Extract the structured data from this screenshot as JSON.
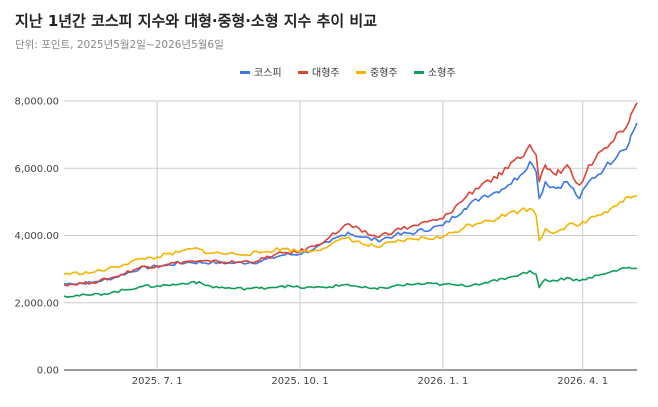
{
  "chart_data": {
    "type": "line",
    "title": "지난 1년간 코스피 지수와 대형·중형·소형 지수 추이 비교",
    "subtitle": "단위: 포인트, 2025년5월2일~2026년5월6일",
    "x_start": "2025-05-02",
    "x_end": "2026-05-06",
    "x_ticks": [
      {
        "date": "2025-07-01",
        "label": "2025. 7. 1"
      },
      {
        "date": "2025-10-01",
        "label": "2025. 10. 1"
      },
      {
        "date": "2026-01-01",
        "label": "2026. 1. 1"
      },
      {
        "date": "2026-04-01",
        "label": "2026. 4. 1"
      }
    ],
    "ylim": [
      0,
      8000
    ],
    "y_ticks": [
      {
        "value": 0,
        "label": "0.00"
      },
      {
        "value": 2000,
        "label": "2,000.00"
      },
      {
        "value": 4000,
        "label": "4,000.00"
      },
      {
        "value": 6000,
        "label": "6,000.00"
      },
      {
        "value": 8000,
        "label": "8,000.00"
      }
    ],
    "grid": true,
    "legend_position": "top",
    "series": [
      {
        "name": "코스피",
        "color": "#3b78e7",
        "points": [
          [
            "2025-05-02",
            2560
          ],
          [
            "2025-05-20",
            2600
          ],
          [
            "2025-06-05",
            2760
          ],
          [
            "2025-06-20",
            3020
          ],
          [
            "2025-07-01",
            3080
          ],
          [
            "2025-07-20",
            3200
          ],
          [
            "2025-08-05",
            3200
          ],
          [
            "2025-08-20",
            3180
          ],
          [
            "2025-09-05",
            3220
          ],
          [
            "2025-09-20",
            3420
          ],
          [
            "2025-10-01",
            3450
          ],
          [
            "2025-10-10",
            3600
          ],
          [
            "2025-10-20",
            3800
          ],
          [
            "2025-11-01",
            4100
          ],
          [
            "2025-11-10",
            3950
          ],
          [
            "2025-11-20",
            3850
          ],
          [
            "2025-12-01",
            4000
          ],
          [
            "2025-12-15",
            4100
          ],
          [
            "2026-01-01",
            4300
          ],
          [
            "2026-01-15",
            4800
          ],
          [
            "2026-01-28",
            5200
          ],
          [
            "2026-02-05",
            5300
          ],
          [
            "2026-02-12",
            5500
          ],
          [
            "2026-02-20",
            5800
          ],
          [
            "2026-02-26",
            6200
          ],
          [
            "2026-03-02",
            5900
          ],
          [
            "2026-03-04",
            5100
          ],
          [
            "2026-03-08",
            5600
          ],
          [
            "2026-03-15",
            5400
          ],
          [
            "2026-03-22",
            5600
          ],
          [
            "2026-03-30",
            5100
          ],
          [
            "2026-04-05",
            5600
          ],
          [
            "2026-04-15",
            6000
          ],
          [
            "2026-04-25",
            6500
          ],
          [
            "2026-05-01",
            6750
          ],
          [
            "2026-05-06",
            7350
          ]
        ]
      },
      {
        "name": "대형주",
        "color": "#db4437",
        "points": [
          [
            "2025-05-02",
            2540
          ],
          [
            "2025-05-20",
            2600
          ],
          [
            "2025-06-05",
            2780
          ],
          [
            "2025-06-20",
            3050
          ],
          [
            "2025-07-01",
            3100
          ],
          [
            "2025-07-20",
            3230
          ],
          [
            "2025-08-05",
            3220
          ],
          [
            "2025-08-20",
            3200
          ],
          [
            "2025-09-05",
            3260
          ],
          [
            "2025-09-20",
            3480
          ],
          [
            "2025-10-01",
            3520
          ],
          [
            "2025-10-10",
            3680
          ],
          [
            "2025-10-20",
            3950
          ],
          [
            "2025-11-01",
            4350
          ],
          [
            "2025-11-10",
            4100
          ],
          [
            "2025-11-20",
            3950
          ],
          [
            "2025-12-01",
            4150
          ],
          [
            "2025-12-15",
            4300
          ],
          [
            "2026-01-01",
            4500
          ],
          [
            "2026-01-15",
            5100
          ],
          [
            "2026-01-28",
            5600
          ],
          [
            "2026-02-05",
            5700
          ],
          [
            "2026-02-12",
            6000
          ],
          [
            "2026-02-20",
            6300
          ],
          [
            "2026-02-26",
            6700
          ],
          [
            "2026-03-02",
            6400
          ],
          [
            "2026-03-04",
            5600
          ],
          [
            "2026-03-08",
            6100
          ],
          [
            "2026-03-15",
            5800
          ],
          [
            "2026-03-22",
            6100
          ],
          [
            "2026-03-30",
            5500
          ],
          [
            "2026-04-05",
            6100
          ],
          [
            "2026-04-15",
            6600
          ],
          [
            "2026-04-25",
            7100
          ],
          [
            "2026-05-01",
            7400
          ],
          [
            "2026-05-06",
            7950
          ]
        ]
      },
      {
        "name": "중형주",
        "color": "#f4b400",
        "points": [
          [
            "2025-05-02",
            2860
          ],
          [
            "2025-05-20",
            2900
          ],
          [
            "2025-06-05",
            3060
          ],
          [
            "2025-06-20",
            3300
          ],
          [
            "2025-07-01",
            3360
          ],
          [
            "2025-07-15",
            3500
          ],
          [
            "2025-07-25",
            3620
          ],
          [
            "2025-08-05",
            3480
          ],
          [
            "2025-08-20",
            3450
          ],
          [
            "2025-09-05",
            3480
          ],
          [
            "2025-09-20",
            3620
          ],
          [
            "2025-10-01",
            3520
          ],
          [
            "2025-10-10",
            3560
          ],
          [
            "2025-10-20",
            3700
          ],
          [
            "2025-11-01",
            3950
          ],
          [
            "2025-11-10",
            3750
          ],
          [
            "2025-11-20",
            3650
          ],
          [
            "2025-12-01",
            3800
          ],
          [
            "2025-12-15",
            3900
          ],
          [
            "2026-01-01",
            3950
          ],
          [
            "2026-01-15",
            4250
          ],
          [
            "2026-01-28",
            4450
          ],
          [
            "2026-02-05",
            4500
          ],
          [
            "2026-02-12",
            4650
          ],
          [
            "2026-02-20",
            4750
          ],
          [
            "2026-02-26",
            4800
          ],
          [
            "2026-03-02",
            4600
          ],
          [
            "2026-03-04",
            3850
          ],
          [
            "2026-03-08",
            4200
          ],
          [
            "2026-03-15",
            4100
          ],
          [
            "2026-03-22",
            4300
          ],
          [
            "2026-03-30",
            4300
          ],
          [
            "2026-04-05",
            4500
          ],
          [
            "2026-04-15",
            4700
          ],
          [
            "2026-04-25",
            5000
          ],
          [
            "2026-05-01",
            5150
          ],
          [
            "2026-05-06",
            5180
          ]
        ]
      },
      {
        "name": "소형주",
        "color": "#0f9d58",
        "points": [
          [
            "2025-05-02",
            2200
          ],
          [
            "2025-05-20",
            2230
          ],
          [
            "2025-06-05",
            2320
          ],
          [
            "2025-06-20",
            2480
          ],
          [
            "2025-07-01",
            2500
          ],
          [
            "2025-07-15",
            2550
          ],
          [
            "2025-07-25",
            2630
          ],
          [
            "2025-08-05",
            2480
          ],
          [
            "2025-08-20",
            2420
          ],
          [
            "2025-09-05",
            2430
          ],
          [
            "2025-09-20",
            2500
          ],
          [
            "2025-10-01",
            2450
          ],
          [
            "2025-10-10",
            2450
          ],
          [
            "2025-10-20",
            2470
          ],
          [
            "2025-11-01",
            2550
          ],
          [
            "2025-11-10",
            2450
          ],
          [
            "2025-11-20",
            2400
          ],
          [
            "2025-12-01",
            2500
          ],
          [
            "2025-12-15",
            2560
          ],
          [
            "2026-01-01",
            2550
          ],
          [
            "2026-01-15",
            2500
          ],
          [
            "2026-01-28",
            2600
          ],
          [
            "2026-02-05",
            2650
          ],
          [
            "2026-02-12",
            2750
          ],
          [
            "2026-02-20",
            2850
          ],
          [
            "2026-02-26",
            2950
          ],
          [
            "2026-03-02",
            2850
          ],
          [
            "2026-03-04",
            2450
          ],
          [
            "2026-03-08",
            2700
          ],
          [
            "2026-03-15",
            2650
          ],
          [
            "2026-03-22",
            2750
          ],
          [
            "2026-03-30",
            2650
          ],
          [
            "2026-04-05",
            2750
          ],
          [
            "2026-04-15",
            2850
          ],
          [
            "2026-04-25",
            3000
          ],
          [
            "2026-05-01",
            3050
          ],
          [
            "2026-05-06",
            3020
          ]
        ]
      }
    ]
  }
}
